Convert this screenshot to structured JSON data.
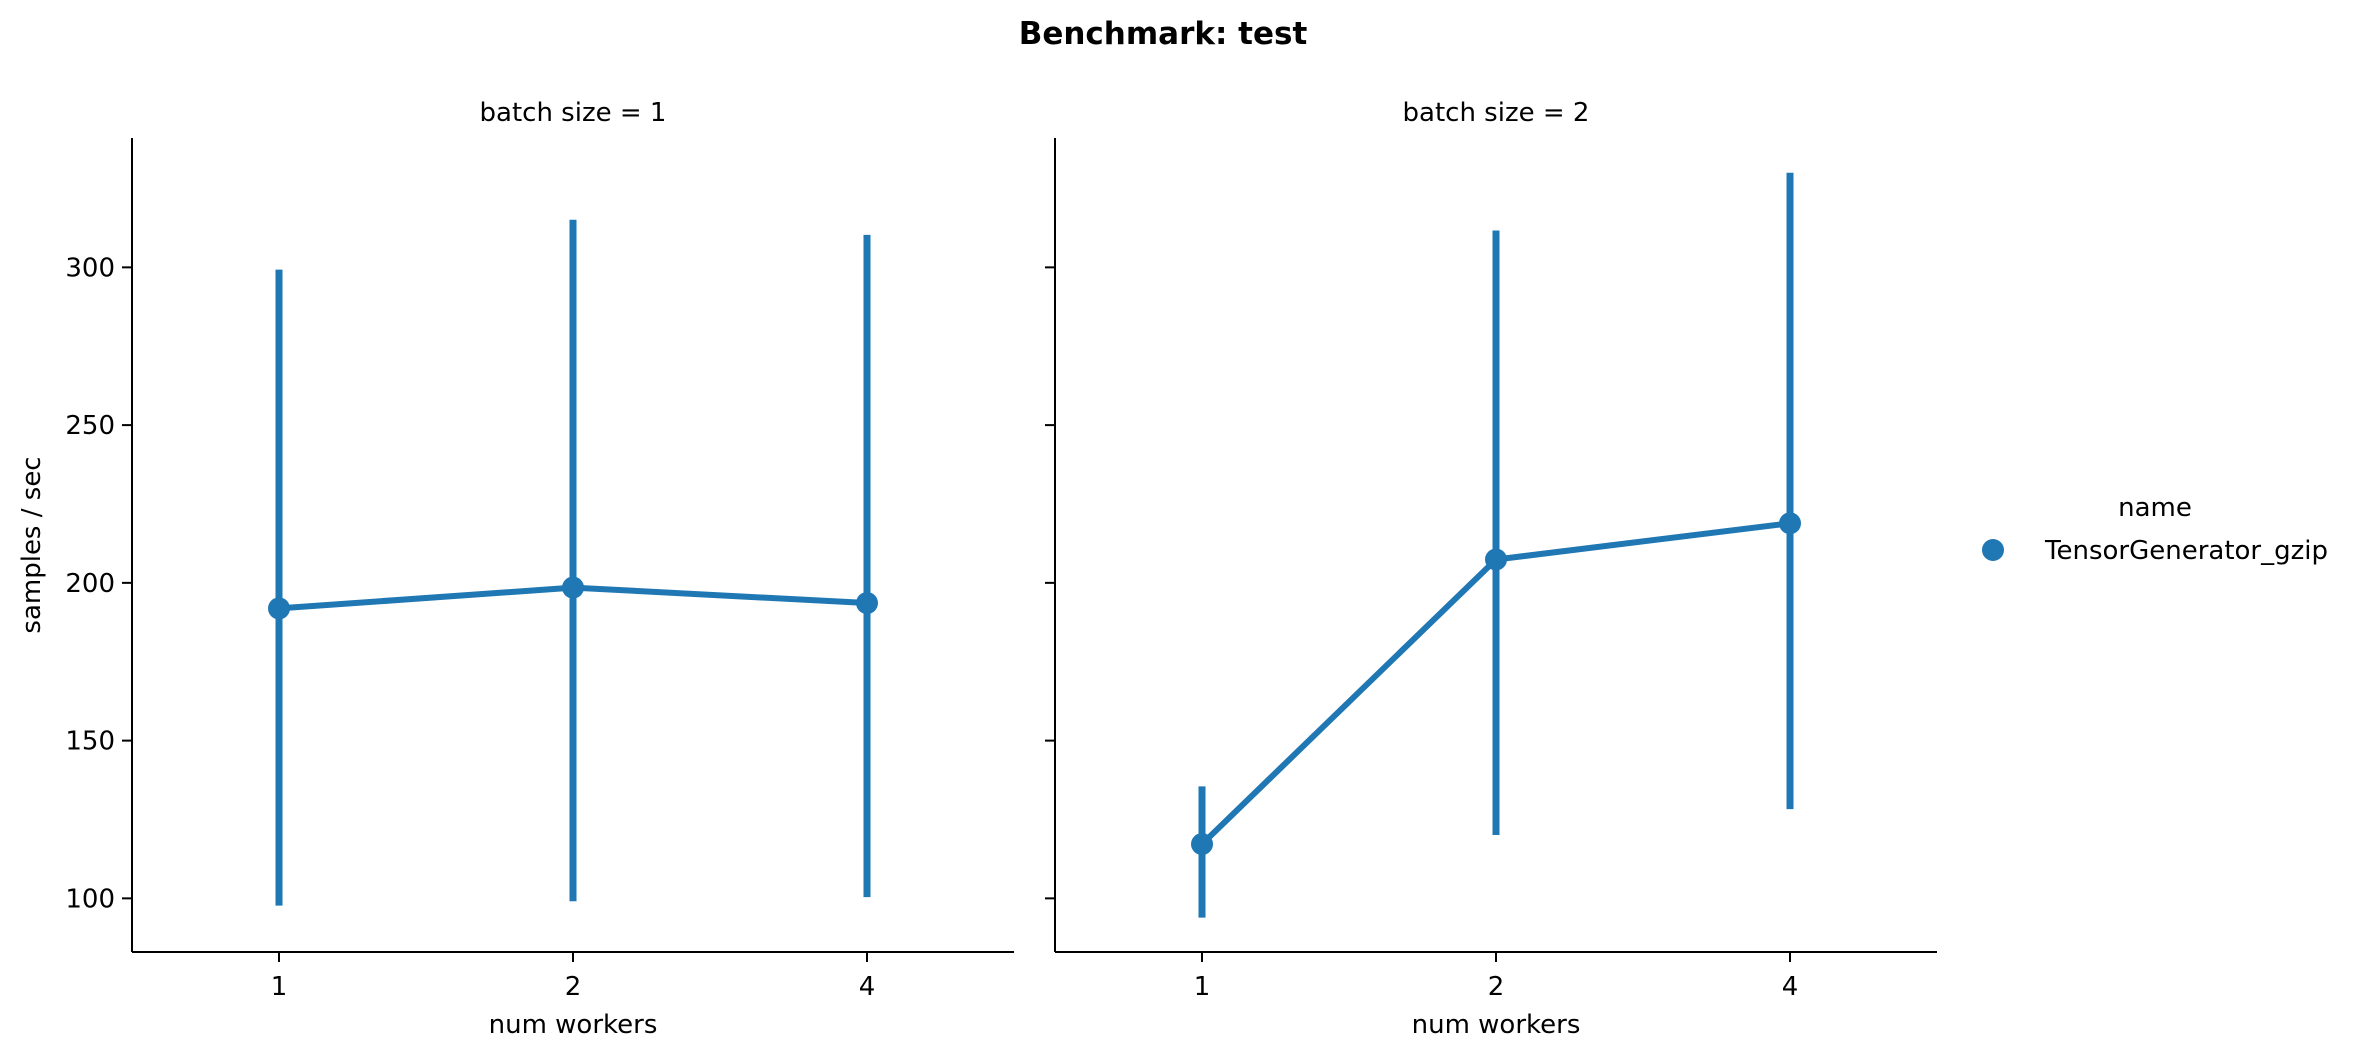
{
  "chart_data": {
    "type": "line",
    "title": "Benchmark: test",
    "ylabel": "samples / sec",
    "xlabel": "num workers",
    "x_categories": [
      "1",
      "2",
      "4"
    ],
    "ylim": [
      83,
      341
    ],
    "yticks": [
      100,
      150,
      200,
      250,
      300
    ],
    "error_bars": true,
    "grid": false,
    "legend": {
      "title": "name",
      "placement": "right",
      "entries": [
        {
          "name": "TensorGenerator_gzip",
          "color": "#1f77b4"
        }
      ]
    },
    "panels": [
      {
        "title": "batch size = 1",
        "series": [
          {
            "name": "TensorGenerator_gzip",
            "color": "#1f77b4",
            "values": [
              191.9,
              198.5,
              193.6
            ],
            "err_low": [
              97.7,
              99.1,
              100.4
            ],
            "err_high": [
              299.3,
              315.1,
              310.3
            ]
          }
        ]
      },
      {
        "title": "batch size = 2",
        "series": [
          {
            "name": "TensorGenerator_gzip",
            "color": "#1f77b4",
            "values": [
              117.2,
              207.4,
              218.9
            ],
            "err_low": [
              93.9,
              120.1,
              128.3
            ],
            "err_high": [
              135.5,
              311.7,
              330.0
            ]
          }
        ]
      }
    ]
  }
}
